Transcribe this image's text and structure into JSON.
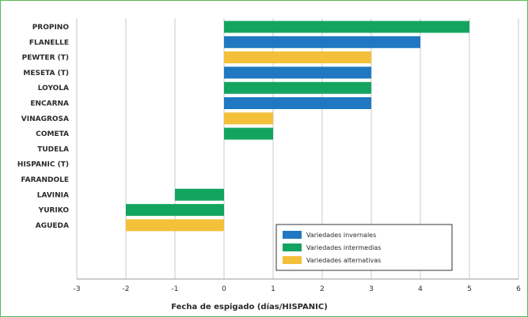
{
  "chart_data": {
    "type": "bar",
    "orientation": "horizontal",
    "categories": [
      "PROPINO",
      "FLANELLE",
      "PEWTER (T)",
      "MESETA (T)",
      "LOYOLA",
      "ENCARNA",
      "VINAGROSA",
      "COMETA",
      "TUDELA",
      "HISPANIC (T)",
      "FARANDOLE",
      "LAVINIA",
      "YURIKO",
      "AGUEDA"
    ],
    "values": [
      5,
      4,
      3,
      3,
      3,
      3,
      1,
      1,
      0,
      0,
      0,
      -1,
      -2,
      -2
    ],
    "groups": [
      "intermedias",
      "invernales",
      "alternativas",
      "invernales",
      "intermedias",
      "invernales",
      "alternativas",
      "intermedias",
      "intermedias",
      "invernales",
      "invernales",
      "intermedias",
      "intermedias",
      "alternativas"
    ],
    "series": [
      {
        "key": "invernales",
        "name": "Variedades invernales",
        "color": "#1f78c1"
      },
      {
        "key": "intermedias",
        "name": "Variedades intermedias",
        "color": "#13a560"
      },
      {
        "key": "alternativas",
        "name": "Variedades alternativas",
        "color": "#f4c03a"
      }
    ],
    "xlim": [
      -3,
      6
    ],
    "xticks": [
      -3,
      -2,
      -1,
      0,
      1,
      2,
      3,
      4,
      5,
      6
    ],
    "xlabel": "Fecha de espigado (días/HISPANIC)",
    "ylabel": "",
    "grid": "vertical",
    "legend_position": "bottom-right"
  }
}
